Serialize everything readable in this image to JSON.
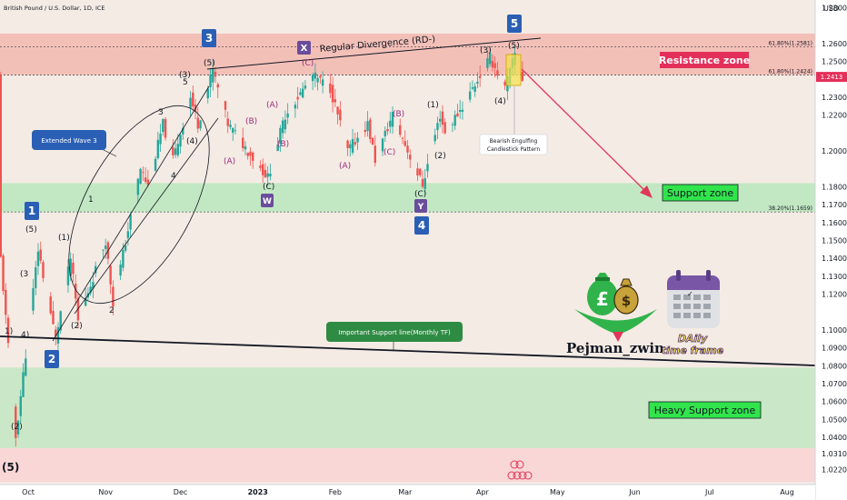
{
  "chart_data": {
    "type": "candlestick",
    "title": "British Pound / U.S. Dollar, 1D, ICE",
    "currency_label": "USD",
    "ylim": [
      1.0152,
      1.2812
    ],
    "y_ticks": [
      "1.2800",
      "1.2600",
      "1.2500",
      "1.2300",
      "1.2200",
      "1.2000",
      "1.1800",
      "1.1700",
      "1.1600",
      "1.1500",
      "1.1400",
      "1.1300",
      "1.1200",
      "1.1000",
      "1.0900",
      "1.0800",
      "1.0700",
      "1.0600",
      "1.0500",
      "1.0400",
      "1.0310",
      "1.0220"
    ],
    "x_ticks": [
      {
        "label": "Oct",
        "date": "2022-10-01"
      },
      {
        "label": "Nov",
        "date": "2022-11-01"
      },
      {
        "label": "Dec",
        "date": "2022-12-01"
      },
      {
        "label": "2023",
        "date": "2023-01-01"
      },
      {
        "label": "Feb",
        "date": "2023-02-01"
      },
      {
        "label": "Mar",
        "date": "2023-03-01"
      },
      {
        "label": "Apr",
        "date": "2023-04-01"
      },
      {
        "label": "May",
        "date": "2023-05-01"
      },
      {
        "label": "Jun",
        "date": "2023-06-01"
      },
      {
        "label": "Jul",
        "date": "2023-07-01"
      },
      {
        "label": "Aug",
        "date": "2023-08-01"
      }
    ],
    "current_price": "1.2413",
    "price_path": [
      {
        "date": "2022-09-20",
        "price": 1.14
      },
      {
        "date": "2022-09-26",
        "price": 1.04
      },
      {
        "date": "2022-10-05",
        "price": 1.145
      },
      {
        "date": "2022-10-12",
        "price": 1.095
      },
      {
        "date": "2022-10-18",
        "price": 1.14
      },
      {
        "date": "2022-10-21",
        "price": 1.105
      },
      {
        "date": "2022-11-01",
        "price": 1.15
      },
      {
        "date": "2022-11-04",
        "price": 1.115
      },
      {
        "date": "2022-11-15",
        "price": 1.19
      },
      {
        "date": "2022-11-18",
        "price": 1.18
      },
      {
        "date": "2022-11-24",
        "price": 1.215
      },
      {
        "date": "2022-11-28",
        "price": 1.195
      },
      {
        "date": "2022-12-05",
        "price": 1.23
      },
      {
        "date": "2022-12-08",
        "price": 1.215
      },
      {
        "date": "2022-12-14",
        "price": 1.245
      },
      {
        "date": "2022-12-20",
        "price": 1.215
      },
      {
        "date": "2022-12-28",
        "price": 1.2
      },
      {
        "date": "2023-01-05",
        "price": 1.185
      },
      {
        "date": "2023-01-12",
        "price": 1.22
      },
      {
        "date": "2023-01-23",
        "price": 1.242
      },
      {
        "date": "2023-01-30",
        "price": 1.235
      },
      {
        "date": "2023-02-06",
        "price": 1.2
      },
      {
        "date": "2023-02-14",
        "price": 1.215
      },
      {
        "date": "2023-02-17",
        "price": 1.195
      },
      {
        "date": "2023-02-24",
        "price": 1.22
      },
      {
        "date": "2023-03-02",
        "price": 1.2
      },
      {
        "date": "2023-03-08",
        "price": 1.181
      },
      {
        "date": "2023-03-15",
        "price": 1.22
      },
      {
        "date": "2023-03-17",
        "price": 1.21
      },
      {
        "date": "2023-03-24",
        "price": 1.225
      },
      {
        "date": "2023-04-04",
        "price": 1.252
      },
      {
        "date": "2023-04-10",
        "price": 1.235
      },
      {
        "date": "2023-04-14",
        "price": 1.254
      },
      {
        "date": "2023-04-17",
        "price": 1.24
      }
    ],
    "zones": [
      {
        "label": "Resistance zone",
        "from": 1.2424,
        "to": 1.2655,
        "color": "#f2b8b0"
      },
      {
        "label": "Support zone",
        "from": 1.1659,
        "to": 1.182,
        "color": "#b9e8bd"
      },
      {
        "label": "Heavy Support zone",
        "from": 1.034,
        "to": 1.079,
        "color": "#c2e8c2"
      },
      {
        "label": "",
        "from": 1.0152,
        "to": 1.034,
        "color": "#f8d4d4"
      }
    ],
    "fib_levels": [
      {
        "label": "61.80%(1.2581)",
        "price": 1.2581
      },
      {
        "label": "61.80%(1.2424)",
        "price": 1.2424
      },
      {
        "label": "38.20%(1.1659)",
        "price": 1.1659
      }
    ],
    "annotations": {
      "extended_wave": "Extended Wave 3",
      "divergence": "Regular Divergence (RD-)",
      "divergence_letter": "X",
      "bearish_line1": "Bearish Engulfing",
      "bearish_line2": "Candlestick Pattern",
      "important_support": "Important Support line(Monthly TF)",
      "w_label": "W",
      "y_label": "Y"
    },
    "wave_boxes": [
      "1",
      "2",
      "3",
      "4",
      "5"
    ],
    "wave_labels": {
      "paren_1": "(1)",
      "paren_2": "(2)",
      "paren_3": "(3)",
      "paren_4": "(4)",
      "paren_5": "(5)",
      "paren_a": "(A)",
      "paren_b": "(B)",
      "paren_c": "(C)",
      "n1": "1",
      "n2": "2",
      "n3": "3",
      "n4": "4",
      "n5": "5",
      "bottom_left": "(5)",
      "paren_3_short": "(3",
      "paren_1_short": "1)",
      "paren_4_short": "4)"
    }
  },
  "branding": {
    "name": "Pejman_zwin",
    "calendar_line1": "DAily",
    "calendar_line2": "time frame"
  }
}
